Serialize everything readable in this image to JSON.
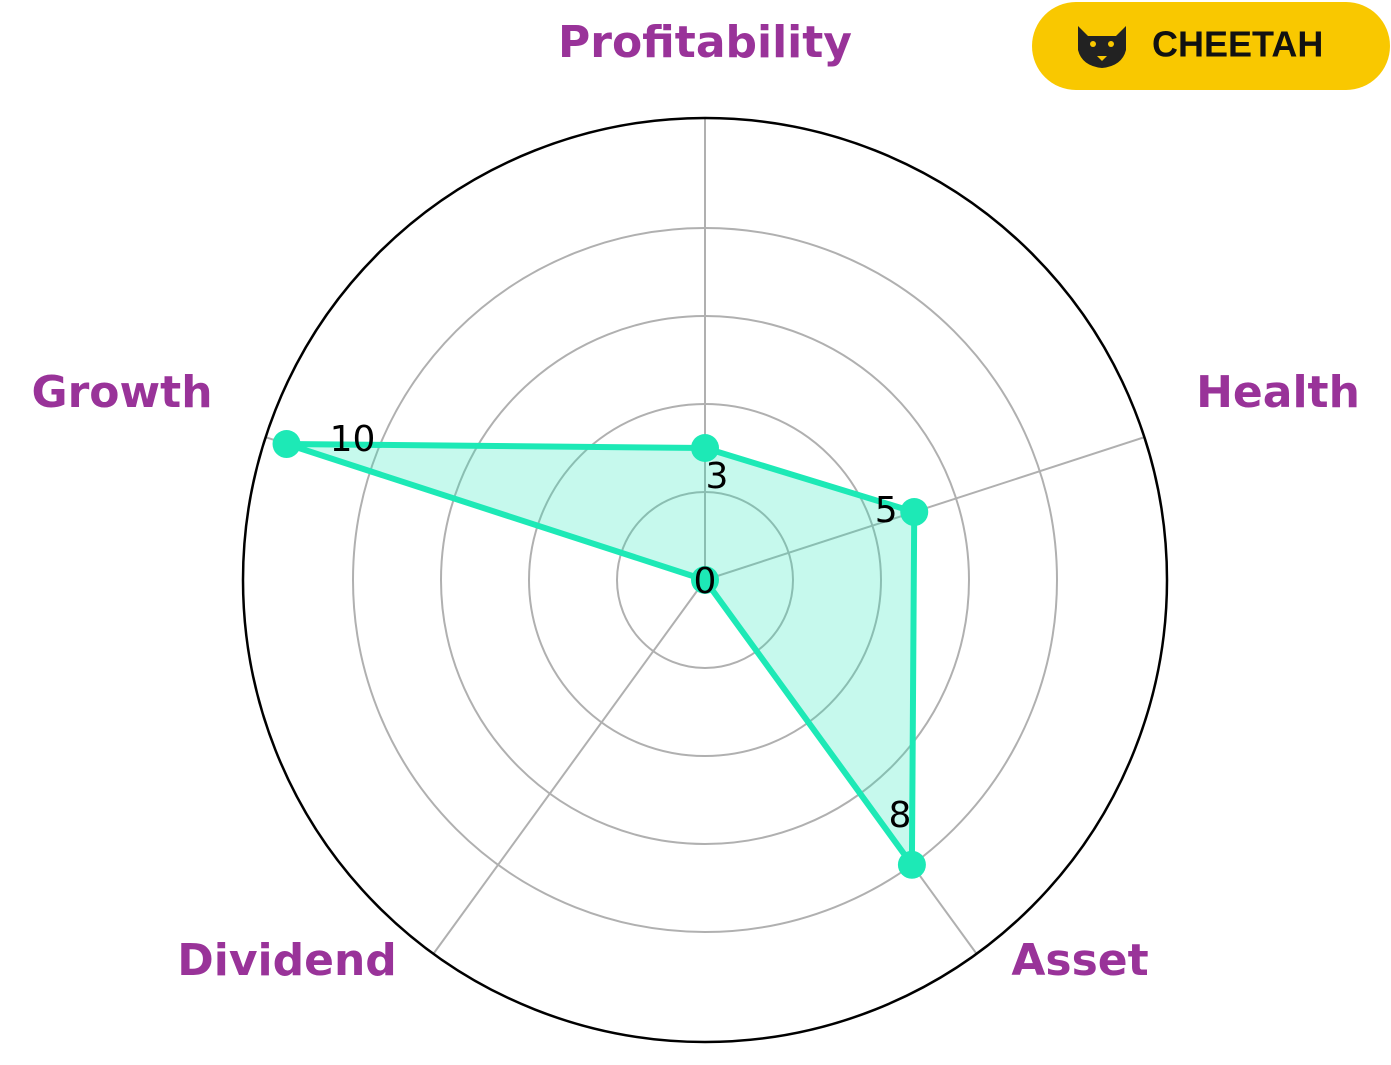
{
  "brand": "CHEETAH",
  "chart_data": {
    "type": "radar",
    "categories": [
      "Profitability",
      "Health",
      "Asset",
      "Dividend",
      "Growth"
    ],
    "values": [
      3,
      5,
      8,
      0,
      10
    ],
    "color": "#1de9b6",
    "label_color": "#993399",
    "ylim": [
      0,
      10.5
    ],
    "yticks": [
      2,
      4,
      6,
      8
    ],
    "grid": true
  }
}
